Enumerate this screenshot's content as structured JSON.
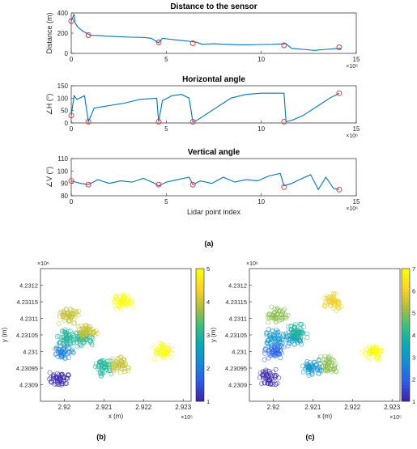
{
  "colors": {
    "line": "#0072BD",
    "marker": "#E03030",
    "axis": "#262626",
    "grid": "#dcdcdc"
  },
  "captions": {
    "a": "(a)",
    "b": "(b)",
    "c": "(c)"
  },
  "chart_data": [
    {
      "type": "line",
      "title": "Distance to the sensor",
      "ylabel": "Distance (m)",
      "xlabel": "",
      "xlim": [
        0,
        15
      ],
      "ylim": [
        0,
        400
      ],
      "x_exponent": "×10⁶",
      "xticks": [
        "0",
        "5",
        "10",
        "15"
      ],
      "yticks": [
        "0",
        "200",
        "400"
      ],
      "series": [
        {
          "x": [
            0,
            0.15,
            0.2,
            0.35,
            0.6,
            0.8,
            1.0,
            1.5,
            2.0,
            2.6,
            3.2,
            3.8,
            4.2,
            4.6,
            4.8,
            5.2,
            5.7,
            6.2,
            6.6,
            6.9,
            7.5,
            8.1,
            8.8,
            9.4,
            10.0,
            10.6,
            11.3,
            11.6,
            12.2,
            12.8,
            13.4,
            13.8,
            14.2
          ],
          "y": [
            320,
            390,
            300,
            260,
            220,
            200,
            180,
            175,
            170,
            165,
            160,
            158,
            150,
            105,
            150,
            140,
            130,
            120,
            110,
            90,
            95,
            90,
            85,
            85,
            88,
            90,
            95,
            50,
            40,
            30,
            40,
            45,
            50
          ]
        }
      ],
      "markers": {
        "x": [
          0,
          0.9,
          4.6,
          6.4,
          11.2,
          14.1
        ],
        "y": [
          320,
          180,
          110,
          100,
          80,
          60
        ]
      }
    },
    {
      "type": "line",
      "title": "Horizontal angle",
      "ylabel": "∠H (°)",
      "xlabel": "",
      "xlim": [
        0,
        15
      ],
      "ylim": [
        0,
        150
      ],
      "x_exponent": "×10⁶",
      "xticks": [
        "0",
        "5",
        "10",
        "15"
      ],
      "yticks": [
        "0",
        "50",
        "100",
        "150"
      ],
      "series": [
        {
          "x": [
            0,
            0.15,
            0.3,
            0.7,
            0.9,
            1.2,
            2.0,
            2.8,
            3.6,
            4.5,
            4.6,
            4.8,
            5.3,
            5.8,
            6.2,
            6.4,
            6.6,
            7.0,
            7.6,
            8.4,
            9.2,
            10.0,
            10.8,
            11.2,
            11.3,
            11.6,
            12.2,
            12.8,
            13.2,
            13.6,
            14.1
          ],
          "y": [
            30,
            110,
            95,
            110,
            5,
            60,
            70,
            80,
            95,
            100,
            5,
            90,
            110,
            115,
            100,
            5,
            10,
            30,
            60,
            100,
            115,
            120,
            120,
            120,
            5,
            10,
            30,
            60,
            80,
            100,
            120
          ]
        }
      ],
      "markers": {
        "x": [
          0,
          0.9,
          4.6,
          6.4,
          11.2,
          14.1
        ],
        "y": [
          30,
          5,
          5,
          5,
          5,
          120
        ]
      }
    },
    {
      "type": "line",
      "title": "Vertical angle",
      "ylabel": "∠V (°)",
      "xlabel": "Lidar point index",
      "xlim": [
        0,
        15
      ],
      "ylim": [
        80,
        110
      ],
      "x_exponent": "×10⁶",
      "xticks": [
        "0",
        "5",
        "10",
        "15"
      ],
      "yticks": [
        "80",
        "90",
        "100",
        "110"
      ],
      "series": [
        {
          "x": [
            0,
            0.5,
            0.9,
            1.4,
            2.0,
            2.6,
            3.2,
            3.8,
            4.4,
            4.6,
            5.0,
            5.6,
            6.2,
            6.4,
            6.8,
            7.4,
            8.0,
            8.6,
            9.2,
            9.8,
            10.4,
            11.0,
            11.2,
            11.6,
            12.0,
            12.6,
            13.0,
            13.4,
            13.8,
            14.1
          ],
          "y": [
            92,
            90,
            89,
            93,
            90,
            92,
            91,
            94,
            90,
            88,
            91,
            93,
            95,
            89,
            92,
            90,
            95,
            91,
            93,
            92,
            96,
            98,
            88,
            90,
            93,
            97,
            85,
            95,
            86,
            85
          ]
        }
      ],
      "markers": {
        "x": [
          0,
          0.9,
          4.6,
          6.4,
          11.2,
          14.1
        ],
        "y": [
          92,
          89,
          89,
          89,
          87,
          85
        ]
      }
    },
    {
      "type": "scatter",
      "title": "",
      "xlabel": "x (m)",
      "ylabel": "y (m)",
      "xlim": [
        2.9194,
        2.9232
      ],
      "ylim": [
        4.23085,
        4.23125
      ],
      "x_exponent": "×10⁵",
      "y_exponent": "×10⁶",
      "xticks": [
        "2.92",
        "2.921",
        "2.922",
        "2.923"
      ],
      "yticks": [
        "4.2309",
        "4.23095",
        "4.231",
        "4.23105",
        "4.2311",
        "4.23115",
        "4.2312"
      ],
      "colorbar": {
        "min": 1,
        "max": 5,
        "ticks": [
          "1",
          "2",
          "3",
          "4",
          "5"
        ]
      },
      "clusters": [
        {
          "cx": 2.9199,
          "cy": 4.23092,
          "c": 1
        },
        {
          "cx": 2.92,
          "cy": 4.231,
          "c": 2
        },
        {
          "cx": 2.92005,
          "cy": 4.23104,
          "c": 3
        },
        {
          "cx": 2.9205,
          "cy": 4.23104,
          "c": 3
        },
        {
          "cx": 2.9201,
          "cy": 4.23111,
          "c": 4
        },
        {
          "cx": 2.9206,
          "cy": 4.23106,
          "c": 4
        },
        {
          "cx": 2.921,
          "cy": 4.23095,
          "c": 3
        },
        {
          "cx": 2.9214,
          "cy": 4.23096,
          "c": 4
        },
        {
          "cx": 2.9225,
          "cy": 4.231,
          "c": 5
        },
        {
          "cx": 2.9215,
          "cy": 4.23115,
          "c": 5
        }
      ]
    },
    {
      "type": "scatter",
      "title": "",
      "xlabel": "x (m)",
      "ylabel": "y (m)",
      "xlim": [
        2.9194,
        2.9232
      ],
      "ylim": [
        4.23085,
        4.23125
      ],
      "x_exponent": "×10⁵",
      "y_exponent": "×10⁶",
      "xticks": [
        "2.92",
        "2.921",
        "2.922",
        "2.923"
      ],
      "yticks": [
        "4.2309",
        "4.23095",
        "4.231",
        "4.23105",
        "4.2311",
        "4.23115",
        "4.2312"
      ],
      "colorbar": {
        "min": 1,
        "max": 7,
        "ticks": [
          "1",
          "2",
          "3",
          "4",
          "5",
          "6",
          "7"
        ]
      },
      "clusters": [
        {
          "cx": 2.9199,
          "cy": 4.23092,
          "c": 1
        },
        {
          "cx": 2.92,
          "cy": 4.231,
          "c": 2
        },
        {
          "cx": 2.92005,
          "cy": 4.23104,
          "c": 3
        },
        {
          "cx": 2.9205,
          "cy": 4.23104,
          "c": 3
        },
        {
          "cx": 2.9201,
          "cy": 4.23111,
          "c": 5
        },
        {
          "cx": 2.9206,
          "cy": 4.23106,
          "c": 4
        },
        {
          "cx": 2.921,
          "cy": 4.23095,
          "c": 3
        },
        {
          "cx": 2.9214,
          "cy": 4.23096,
          "c": 5
        },
        {
          "cx": 2.9225,
          "cy": 4.231,
          "c": 7
        },
        {
          "cx": 2.9215,
          "cy": 4.23115,
          "c": 6
        }
      ]
    }
  ]
}
